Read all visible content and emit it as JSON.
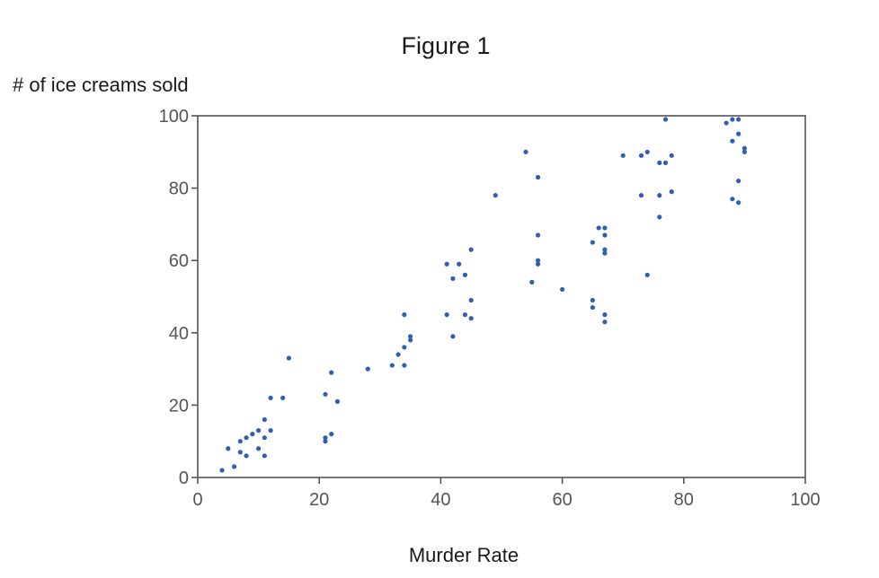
{
  "chart_data": {
    "type": "scatter",
    "title": "Figure 1",
    "xlabel": "Murder Rate",
    "ylabel": "# of ice creams sold",
    "xlim": [
      0,
      100
    ],
    "ylim": [
      0,
      100
    ],
    "xticks": [
      "0",
      "20",
      "40",
      "60",
      "80",
      "100"
    ],
    "yticks": [
      "0",
      "20",
      "40",
      "60",
      "80",
      "100"
    ],
    "grid": false,
    "legend": "none",
    "marker_color": "#2f5fb5",
    "axis_color": "#555555",
    "series": [
      {
        "points": [
          [
            4,
            2
          ],
          [
            5,
            8
          ],
          [
            6,
            3
          ],
          [
            7,
            7
          ],
          [
            7,
            10
          ],
          [
            8,
            6
          ],
          [
            8,
            11
          ],
          [
            9,
            12
          ],
          [
            10,
            8
          ],
          [
            10,
            13
          ],
          [
            11,
            6
          ],
          [
            11,
            11
          ],
          [
            11,
            16
          ],
          [
            12,
            13
          ],
          [
            12,
            22
          ],
          [
            14,
            22
          ],
          [
            15,
            33
          ],
          [
            21,
            10
          ],
          [
            21,
            11
          ],
          [
            21,
            23
          ],
          [
            22,
            12
          ],
          [
            22,
            29
          ],
          [
            23,
            21
          ],
          [
            28,
            30
          ],
          [
            32,
            31
          ],
          [
            33,
            34
          ],
          [
            34,
            31
          ],
          [
            34,
            36
          ],
          [
            34,
            45
          ],
          [
            35,
            38
          ],
          [
            35,
            39
          ],
          [
            41,
            45
          ],
          [
            41,
            59
          ],
          [
            42,
            39
          ],
          [
            42,
            55
          ],
          [
            43,
            59
          ],
          [
            44,
            45
          ],
          [
            44,
            56
          ],
          [
            45,
            44
          ],
          [
            45,
            49
          ],
          [
            45,
            63
          ],
          [
            49,
            78
          ],
          [
            54,
            90
          ],
          [
            55,
            54
          ],
          [
            56,
            59
          ],
          [
            56,
            60
          ],
          [
            56,
            67
          ],
          [
            56,
            83
          ],
          [
            60,
            52
          ],
          [
            65,
            47
          ],
          [
            65,
            49
          ],
          [
            65,
            65
          ],
          [
            66,
            69
          ],
          [
            67,
            43
          ],
          [
            67,
            45
          ],
          [
            67,
            62
          ],
          [
            67,
            63
          ],
          [
            67,
            67
          ],
          [
            67,
            69
          ],
          [
            70,
            89
          ],
          [
            73,
            78
          ],
          [
            73,
            89
          ],
          [
            74,
            56
          ],
          [
            74,
            90
          ],
          [
            76,
            72
          ],
          [
            76,
            78
          ],
          [
            76,
            87
          ],
          [
            77,
            87
          ],
          [
            77,
            99
          ],
          [
            78,
            79
          ],
          [
            78,
            89
          ],
          [
            87,
            98
          ],
          [
            88,
            77
          ],
          [
            88,
            93
          ],
          [
            88,
            99
          ],
          [
            89,
            76
          ],
          [
            89,
            82
          ],
          [
            89,
            95
          ],
          [
            89,
            99
          ],
          [
            90,
            90
          ],
          [
            90,
            91
          ]
        ]
      }
    ]
  }
}
